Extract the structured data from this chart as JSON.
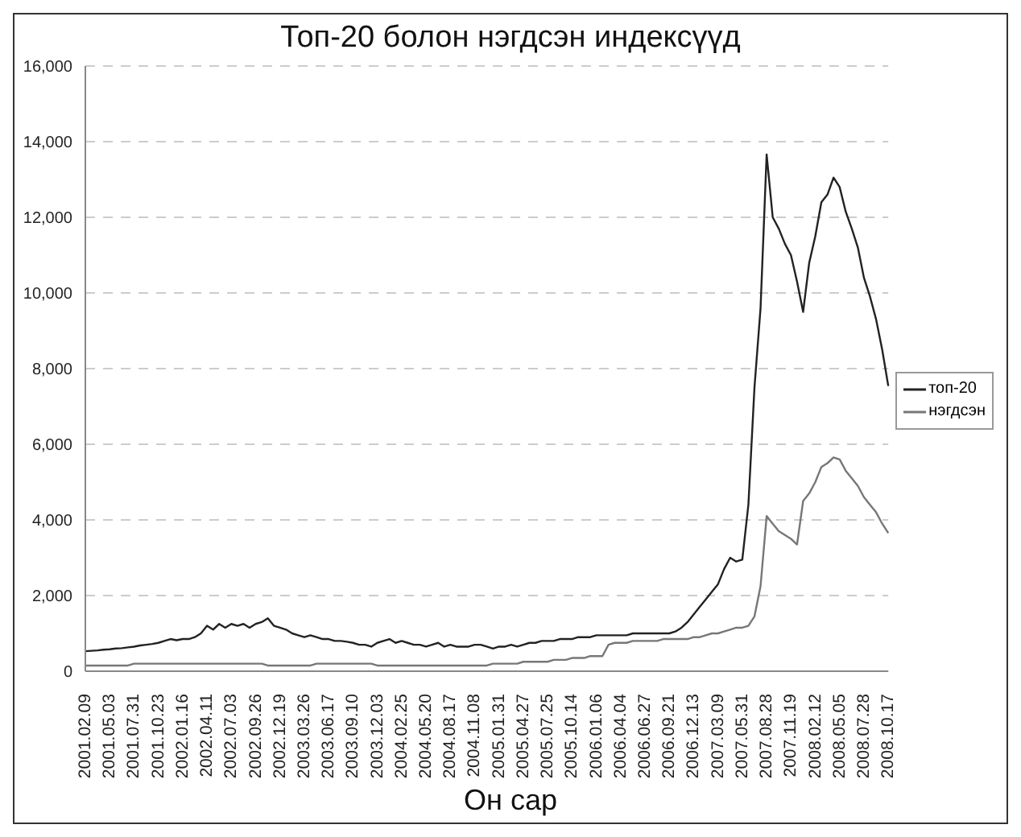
{
  "chart_data": {
    "type": "line",
    "title": "Топ-20 болон нэгдсэн индексүүд",
    "xlabel": "Он сар",
    "categories": [
      "2001.02.09",
      null,
      null,
      null,
      "2001.05.03",
      null,
      null,
      null,
      "2001.07.31",
      null,
      null,
      null,
      "2001.10.23",
      null,
      null,
      null,
      "2002.01.16",
      null,
      null,
      null,
      "2002.04.11",
      null,
      null,
      null,
      "2002.07.03",
      null,
      null,
      null,
      "2002.09.26",
      null,
      null,
      null,
      "2002.12.19",
      null,
      null,
      null,
      "2003.03.26",
      null,
      null,
      null,
      "2003.06.17",
      null,
      null,
      null,
      "2003.09.10",
      null,
      null,
      null,
      "2003.12.03",
      null,
      null,
      null,
      "2004.02.25",
      null,
      null,
      null,
      "2004.05.20",
      null,
      null,
      null,
      "2004.08.17",
      null,
      null,
      null,
      "2004.11.08",
      null,
      null,
      null,
      "2005.01.31",
      null,
      null,
      null,
      "2005.04.27",
      null,
      null,
      null,
      "2005.07.25",
      null,
      null,
      null,
      "2005.10.14",
      null,
      null,
      null,
      "2006.01.06",
      null,
      null,
      null,
      "2006.04.04",
      null,
      null,
      null,
      "2006.06.27",
      null,
      null,
      null,
      "2006.09.21",
      null,
      null,
      null,
      "2006.12.13",
      null,
      null,
      null,
      "2007.03.09",
      null,
      null,
      null,
      "2007.05.31",
      null,
      null,
      null,
      "2007.08.28",
      null,
      null,
      null,
      "2007.11.19",
      null,
      null,
      null,
      "2008.02.12",
      null,
      null,
      null,
      "2008.05.05",
      null,
      null,
      null,
      "2008.07.28",
      null,
      null,
      null,
      "2008.10.17"
    ],
    "series": [
      {
        "name": "топ-20",
        "color": "#222222",
        "values": [
          530,
          540,
          550,
          570,
          580,
          600,
          610,
          630,
          650,
          680,
          700,
          720,
          750,
          800,
          850,
          820,
          850,
          850,
          900,
          1000,
          1200,
          1100,
          1250,
          1150,
          1250,
          1200,
          1250,
          1150,
          1250,
          1300,
          1400,
          1200,
          1150,
          1100,
          1000,
          950,
          900,
          950,
          900,
          850,
          850,
          800,
          800,
          780,
          750,
          700,
          700,
          650,
          750,
          800,
          850,
          750,
          800,
          750,
          700,
          700,
          650,
          700,
          750,
          650,
          700,
          650,
          650,
          650,
          700,
          700,
          650,
          600,
          650,
          650,
          700,
          650,
          700,
          750,
          750,
          800,
          800,
          800,
          850,
          850,
          850,
          900,
          900,
          900,
          950,
          950,
          950,
          950,
          950,
          950,
          1000,
          1000,
          1000,
          1000,
          1000,
          1000,
          1000,
          1050,
          1150,
          1300,
          1500,
          1700,
          1900,
          2100,
          2300,
          2700,
          3000,
          2900,
          2950,
          4400,
          7500,
          9600,
          13660,
          12000,
          11700,
          11300,
          11000,
          10300,
          9500,
          10800,
          11500,
          12400,
          12600,
          13050,
          12800,
          12150,
          11700,
          11200,
          10400,
          9900,
          9300,
          8500,
          7540
        ]
      },
      {
        "name": "нэгдсэн",
        "color": "#777777",
        "values": [
          150,
          150,
          150,
          150,
          150,
          150,
          150,
          150,
          200,
          200,
          200,
          200,
          200,
          200,
          200,
          200,
          200,
          200,
          200,
          200,
          200,
          200,
          200,
          200,
          200,
          200,
          200,
          200,
          200,
          200,
          150,
          150,
          150,
          150,
          150,
          150,
          150,
          150,
          200,
          200,
          200,
          200,
          200,
          200,
          200,
          200,
          200,
          200,
          150,
          150,
          150,
          150,
          150,
          150,
          150,
          150,
          150,
          150,
          150,
          150,
          150,
          150,
          150,
          150,
          150,
          150,
          150,
          200,
          200,
          200,
          200,
          200,
          250,
          250,
          250,
          250,
          250,
          300,
          300,
          300,
          350,
          350,
          350,
          400,
          400,
          400,
          700,
          750,
          750,
          750,
          800,
          800,
          800,
          800,
          800,
          850,
          850,
          850,
          850,
          850,
          900,
          900,
          950,
          1000,
          1000,
          1050,
          1100,
          1150,
          1150,
          1200,
          1450,
          2250,
          4100,
          3900,
          3700,
          3600,
          3500,
          3350,
          4500,
          4700,
          5000,
          5400,
          5500,
          5650,
          5600,
          5300,
          5100,
          4900,
          4600,
          4400,
          4200,
          3900,
          3650
        ]
      }
    ],
    "ylim": [
      0,
      16000
    ],
    "yticks": [
      0,
      {
        "value": 2000,
        "label": "2,000"
      },
      {
        "value": 4000,
        "label": "4,000"
      },
      {
        "value": 6000,
        "label": "6,000"
      },
      {
        "value": 8000,
        "label": "8,000"
      },
      {
        "value": 10000,
        "label": "10,000"
      },
      {
        "value": 12000,
        "label": "12,000"
      },
      {
        "value": 14000,
        "label": "14,000"
      },
      {
        "value": 16000,
        "label": "16,000"
      }
    ],
    "grid": "y",
    "legend": "right"
  }
}
